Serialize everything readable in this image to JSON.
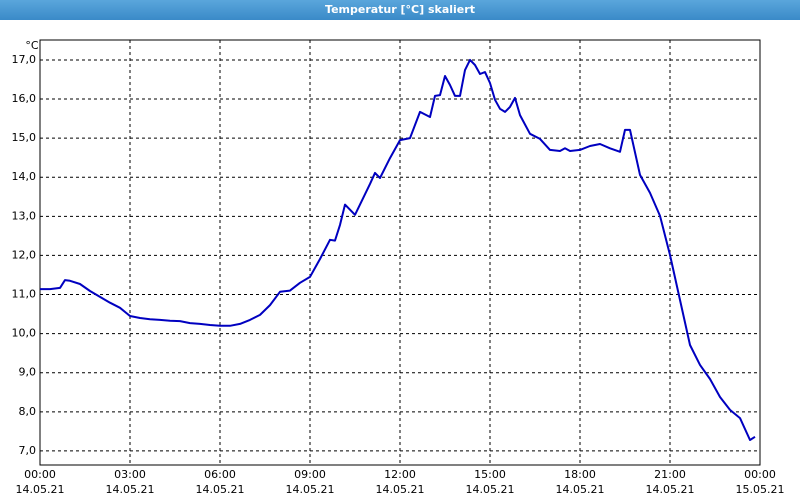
{
  "chart_data": {
    "type": "line",
    "title": "Temperatur [°C] skaliert",
    "y_unit": "°C",
    "xlim": [
      "14.05.21 00:00",
      "15.05.21 00:00"
    ],
    "xticks": [
      {
        "value": "14.05.21 00:00",
        "label": "00:00",
        "date": "14.05.21"
      },
      {
        "value": "14.05.21 03:00",
        "label": "03:00",
        "date": "14.05.21"
      },
      {
        "value": "14.05.21 06:00",
        "label": "06:00",
        "date": "14.05.21"
      },
      {
        "value": "14.05.21 09:00",
        "label": "09:00",
        "date": "14.05.21"
      },
      {
        "value": "14.05.21 12:00",
        "label": "12:00",
        "date": "14.05.21"
      },
      {
        "value": "14.05.21 15:00",
        "label": "15:00",
        "date": "14.05.21"
      },
      {
        "value": "14.05.21 18:00",
        "label": "18:00",
        "date": "14.05.21"
      },
      {
        "value": "14.05.21 21:00",
        "label": "21:00",
        "date": "14.05.21"
      },
      {
        "value": "15.05.21 00:00",
        "label": "00:00",
        "date": "15.05.21"
      }
    ],
    "ylim": [
      6.64,
      17.51
    ],
    "yticks": [
      {
        "value": 7,
        "label": "7,0"
      },
      {
        "value": 8,
        "label": "8,0"
      },
      {
        "value": 9,
        "label": "9,0"
      },
      {
        "value": 10,
        "label": "10,0"
      },
      {
        "value": 11,
        "label": "11,0"
      },
      {
        "value": 12,
        "label": "12,0"
      },
      {
        "value": 13,
        "label": "13,0"
      },
      {
        "value": 14,
        "label": "14,0"
      },
      {
        "value": 15,
        "label": "15,0"
      },
      {
        "value": 16,
        "label": "16,0"
      },
      {
        "value": 17,
        "label": "17,0"
      }
    ],
    "grid": true,
    "x": [
      "14.05.21 00:00",
      "14.05.21 00:20",
      "14.05.21 00:40",
      "14.05.21 00:50",
      "14.05.21 01:00",
      "14.05.21 01:20",
      "14.05.21 01:40",
      "14.05.21 02:00",
      "14.05.21 02:20",
      "14.05.21 02:40",
      "14.05.21 03:00",
      "14.05.21 03:20",
      "14.05.21 03:40",
      "14.05.21 04:00",
      "14.05.21 04:20",
      "14.05.21 04:40",
      "14.05.21 05:00",
      "14.05.21 05:20",
      "14.05.21 05:40",
      "14.05.21 06:00",
      "14.05.21 06:20",
      "14.05.21 06:40",
      "14.05.21 07:00",
      "14.05.21 07:20",
      "14.05.21 07:40",
      "14.05.21 08:00",
      "14.05.21 08:20",
      "14.05.21 08:40",
      "14.05.21 09:00",
      "14.05.21 09:20",
      "14.05.21 09:40",
      "14.05.21 09:50",
      "14.05.21 10:00",
      "14.05.21 10:10",
      "14.05.21 10:20",
      "14.05.21 10:30",
      "14.05.21 10:40",
      "14.05.21 11:00",
      "14.05.21 11:10",
      "14.05.21 11:20",
      "14.05.21 11:40",
      "14.05.21 12:00",
      "14.05.21 12:20",
      "14.05.21 12:40",
      "14.05.21 13:00",
      "14.05.21 13:10",
      "14.05.21 13:20",
      "14.05.21 13:30",
      "14.05.21 13:40",
      "14.05.21 13:50",
      "14.05.21 14:00",
      "14.05.21 14:10",
      "14.05.21 14:20",
      "14.05.21 14:30",
      "14.05.21 14:40",
      "14.05.21 14:50",
      "14.05.21 15:00",
      "14.05.21 15:10",
      "14.05.21 15:20",
      "14.05.21 15:30",
      "14.05.21 15:40",
      "14.05.21 15:50",
      "14.05.21 16:00",
      "14.05.21 16:10",
      "14.05.21 16:20",
      "14.05.21 16:40",
      "14.05.21 17:00",
      "14.05.21 17:20",
      "14.05.21 17:30",
      "14.05.21 17:40",
      "14.05.21 18:00",
      "14.05.21 18:20",
      "14.05.21 18:40",
      "14.05.21 19:00",
      "14.05.21 19:20",
      "14.05.21 19:30",
      "14.05.21 19:40",
      "14.05.21 20:00",
      "14.05.21 20:20",
      "14.05.21 20:40",
      "14.05.21 21:00",
      "14.05.21 21:20",
      "14.05.21 21:40",
      "14.05.21 22:00",
      "14.05.21 22:20",
      "14.05.21 22:40",
      "14.05.21 23:00",
      "14.05.21 23:20",
      "14.05.21 23:40",
      "14.05.21 23:50"
    ],
    "series": [
      {
        "color": "#0000c0",
        "values": [
          11.14,
          11.14,
          11.17,
          11.37,
          11.35,
          11.27,
          11.09,
          10.94,
          10.79,
          10.66,
          10.45,
          10.4,
          10.37,
          10.35,
          10.33,
          10.32,
          10.27,
          10.25,
          10.22,
          10.2,
          10.2,
          10.25,
          10.35,
          10.48,
          10.73,
          11.07,
          11.1,
          11.3,
          11.45,
          11.91,
          12.4,
          12.38,
          12.78,
          13.3,
          13.17,
          13.04,
          13.3,
          13.83,
          14.11,
          13.98,
          14.49,
          14.95,
          15.0,
          15.67,
          15.54,
          16.08,
          16.1,
          16.59,
          16.36,
          16.08,
          16.08,
          16.74,
          17.0,
          16.87,
          16.64,
          16.69,
          16.41,
          15.98,
          15.75,
          15.67,
          15.8,
          16.03,
          15.59,
          15.35,
          15.11,
          14.98,
          14.7,
          14.67,
          14.74,
          14.67,
          14.7,
          14.8,
          14.85,
          14.74,
          14.65,
          15.21,
          15.21,
          14.06,
          13.6,
          13.01,
          12.01,
          10.86,
          9.71,
          9.2,
          8.84,
          8.38,
          8.05,
          7.84,
          7.28,
          7.36
        ]
      }
    ]
  }
}
